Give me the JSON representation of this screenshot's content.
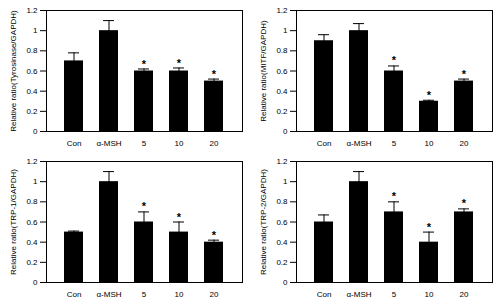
{
  "chart_data": [
    {
      "type": "bar",
      "y_label": "Relative ratio(Tyrosinase/GAPDH)",
      "categories": [
        "Con",
        "α-MSH",
        "5",
        "10",
        "20"
      ],
      "values": [
        0.7,
        1.0,
        0.6,
        0.6,
        0.5
      ],
      "errors": [
        0.08,
        0.1,
        0.02,
        0.03,
        0.02
      ],
      "significance": [
        null,
        null,
        "*",
        "*",
        "*"
      ],
      "color": "#000000",
      "ylim": [
        0,
        1.2
      ],
      "yticks": [
        0,
        0.2,
        0.4,
        0.6,
        0.8,
        1,
        1.2
      ]
    },
    {
      "type": "bar",
      "y_label": "Relative ratio(MITF/GAPDH)",
      "categories": [
        "Con",
        "α-MSH",
        "5",
        "10",
        "20"
      ],
      "values": [
        0.9,
        1.0,
        0.6,
        0.3,
        0.5
      ],
      "errors": [
        0.06,
        0.07,
        0.05,
        0.01,
        0.02
      ],
      "significance": [
        null,
        null,
        "*",
        "*",
        "*"
      ],
      "color": "#000000",
      "ylim": [
        0,
        1.2
      ],
      "yticks": [
        0,
        0.2,
        0.4,
        0.6,
        0.8,
        1,
        1.2
      ]
    },
    {
      "type": "bar",
      "y_label": "Relative ratio(TRP-1/GAPDH)",
      "categories": [
        "Con",
        "α-MSH",
        "5",
        "10",
        "20"
      ],
      "values": [
        0.5,
        1.0,
        0.6,
        0.5,
        0.4
      ],
      "errors": [
        0.01,
        0.1,
        0.1,
        0.1,
        0.02
      ],
      "significance": [
        null,
        null,
        "*",
        "*",
        "*"
      ],
      "color": "#000000",
      "ylim": [
        0,
        1.2
      ],
      "yticks": [
        0,
        0.2,
        0.4,
        0.6,
        0.8,
        1,
        1.2
      ]
    },
    {
      "type": "bar",
      "y_label": "Relative ratio(TRP-2/GAPDH)",
      "categories": [
        "Con",
        "α-MSH",
        "5",
        "10",
        "20"
      ],
      "values": [
        0.6,
        1.0,
        0.7,
        0.4,
        0.7
      ],
      "errors": [
        0.07,
        0.1,
        0.1,
        0.1,
        0.03
      ],
      "significance": [
        null,
        null,
        "*",
        "*",
        "*"
      ],
      "color": "#000000",
      "ylim": [
        0,
        1.2
      ],
      "yticks": [
        0,
        0.2,
        0.4,
        0.6,
        0.8,
        1,
        1.2
      ]
    }
  ]
}
